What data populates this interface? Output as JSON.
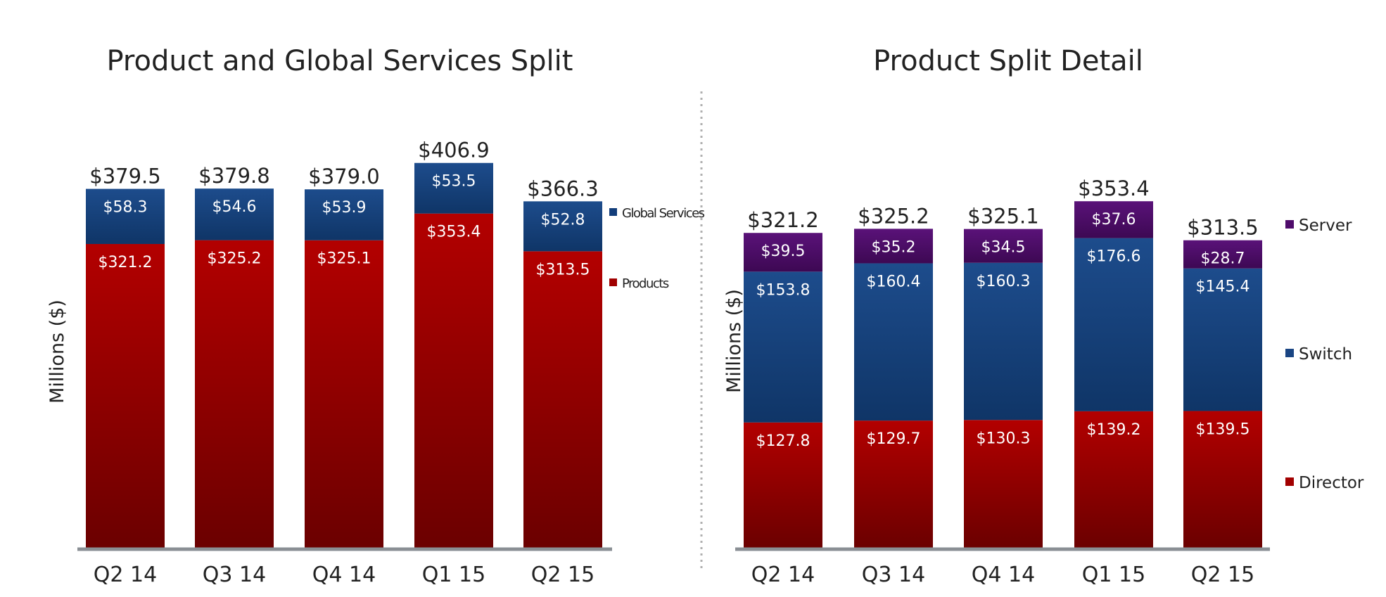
{
  "colors": {
    "products": "#a00000",
    "global_services": "#123d7a",
    "server": "#4f0c6b",
    "switch": "#1a4583",
    "director": "#a20000",
    "axis": "#8a8f94"
  },
  "chart_data": [
    {
      "type": "bar",
      "stacked": true,
      "title": "Product and Global Services Split",
      "ylabel": "Millions ($)",
      "categories": [
        "Q2 14",
        "Q3 14",
        "Q4 14",
        "Q1 15",
        "Q2 15"
      ],
      "series": [
        {
          "name": "Products",
          "values": [
            321.2,
            325.2,
            325.1,
            353.4,
            313.5
          ],
          "labels": [
            "$321.2",
            "$325.2",
            "$325.1",
            "$353.4",
            "$313.5"
          ]
        },
        {
          "name": "Global Services",
          "values": [
            58.3,
            54.6,
            53.9,
            53.5,
            52.8
          ],
          "labels": [
            "$58.3",
            "$54.6",
            "$53.9",
            "$53.5",
            "$52.8"
          ]
        }
      ],
      "totals": [
        "$379.5",
        "$379.8",
        "$379.0",
        "$406.9",
        "$366.3"
      ],
      "legend_position": "right",
      "ylim": [
        0,
        415
      ]
    },
    {
      "type": "bar",
      "stacked": true,
      "title": "Product Split Detail",
      "ylabel": "Millions ($)",
      "categories": [
        "Q2 14",
        "Q3 14",
        "Q4 14",
        "Q1 15",
        "Q2 15"
      ],
      "series": [
        {
          "name": "Director",
          "values": [
            127.8,
            129.7,
            130.3,
            139.2,
            139.5
          ],
          "labels": [
            "$127.8",
            "$129.7",
            "$130.3",
            "$139.2",
            "$139.5"
          ]
        },
        {
          "name": "Switch",
          "values": [
            153.8,
            160.4,
            160.3,
            176.6,
            145.4
          ],
          "labels": [
            "$153.8",
            "$160.4",
            "$160.3",
            "$176.6",
            "$145.4"
          ]
        },
        {
          "name": "Server",
          "values": [
            39.5,
            35.2,
            34.5,
            37.6,
            28.7
          ],
          "labels": [
            "$39.5",
            "$35.2",
            "$34.5",
            "$37.6",
            "$28.7"
          ]
        }
      ],
      "totals": [
        "$321.2",
        "$325.2",
        "$325.1",
        "$353.4",
        "$313.5"
      ],
      "legend_position": "right",
      "ylim": [
        0,
        360
      ]
    }
  ]
}
